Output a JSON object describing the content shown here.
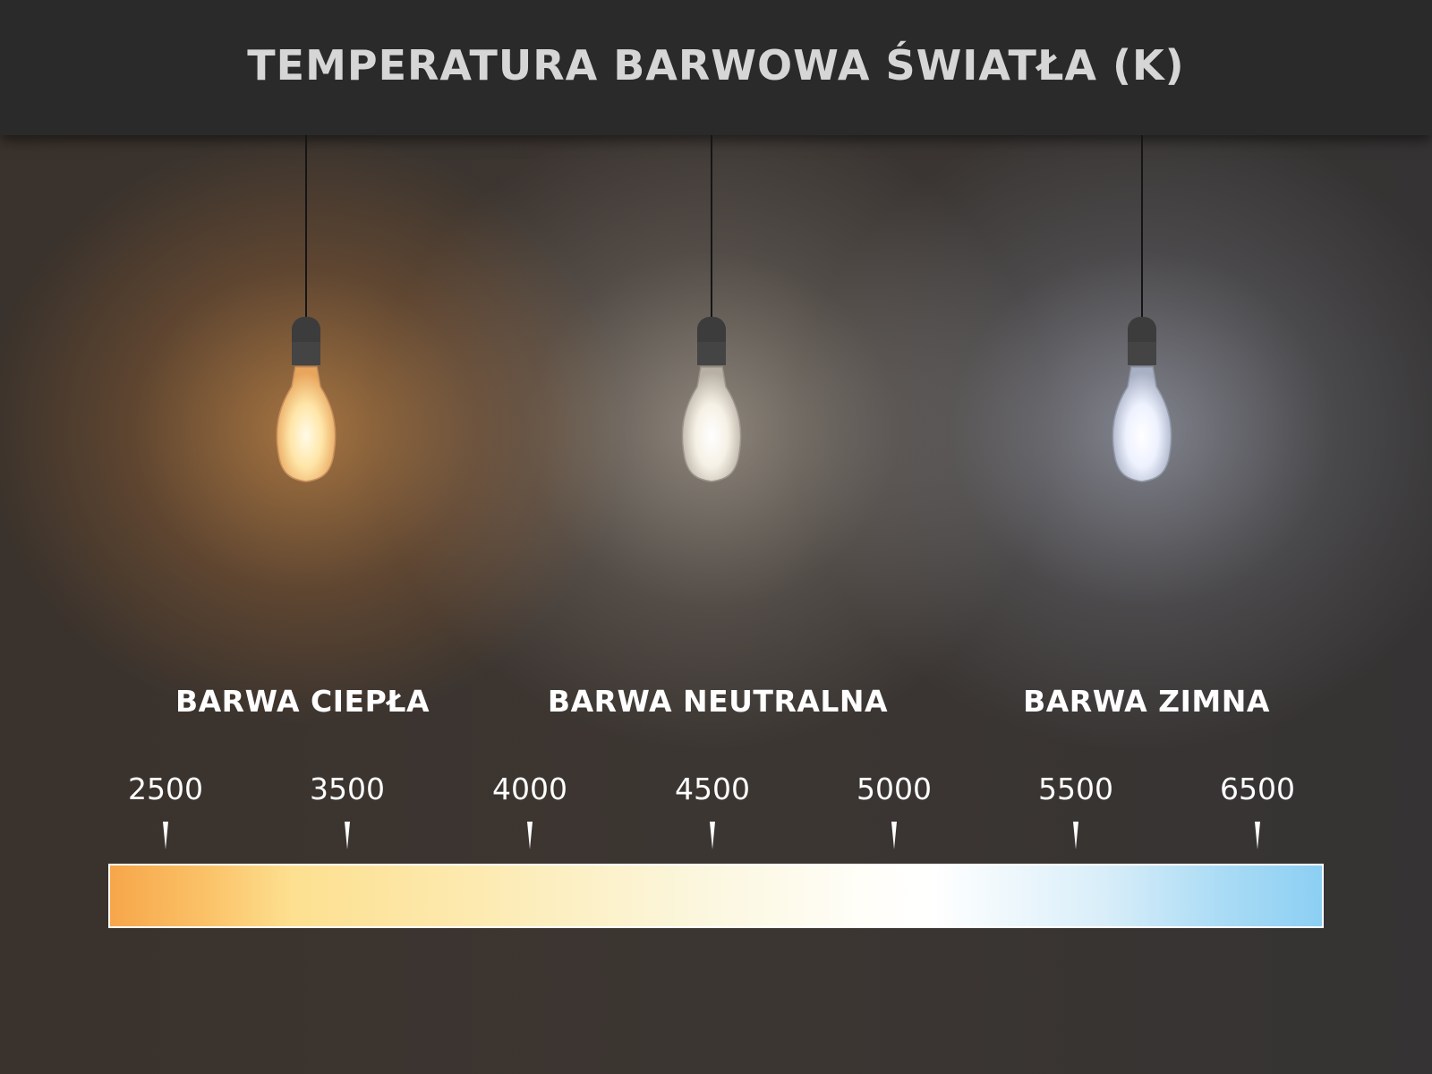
{
  "title": "TEMPERATURA BARWOWA ŚWIATŁA (K)",
  "categories": [
    {
      "label": "BARWA CIEPŁA",
      "glow_color": "#ffb36b"
    },
    {
      "label": "BARWA NEUTRALNA",
      "glow_color": "#fff4e0"
    },
    {
      "label": "BARWA ZIMNA",
      "glow_color": "#e2eaff"
    }
  ],
  "scale": {
    "unit": "K",
    "ticks": [
      "2500",
      "3500",
      "4000",
      "4500",
      "5000",
      "5500",
      "6500"
    ],
    "gradient_colors": [
      "#f7a64a",
      "#fde090",
      "#fbf6dc",
      "#ffffff",
      "#8ccff3"
    ]
  }
}
